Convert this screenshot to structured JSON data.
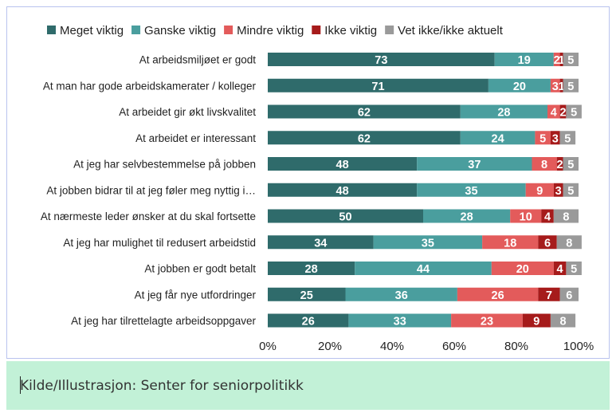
{
  "chart_data": {
    "type": "bar",
    "stacked": true,
    "orientation": "horizontal",
    "categories": [
      "At arbeidsmiljøet er godt",
      "At man har gode arbeidskamerater / kolleger",
      "At arbeidet gir økt livskvalitet",
      "At arbeidet er interessant",
      "At jeg har selvbestemmelse på jobben",
      "At jobben bidrar til at jeg føler meg nyttig i…",
      "At nærmeste leder ønsker at du skal fortsette",
      "At jeg har mulighet til redusert arbeidstid",
      "At jobben er godt betalt",
      "At jeg får nye utfordringer",
      "At jeg har tilrettelagte arbeidsoppgaver"
    ],
    "series": [
      {
        "name": "Meget viktig",
        "color": "#2f6b6b",
        "values": [
          73,
          71,
          62,
          62,
          48,
          48,
          50,
          34,
          28,
          25,
          26
        ]
      },
      {
        "name": "Ganske viktig",
        "color": "#4a9e9e",
        "values": [
          19,
          20,
          28,
          24,
          37,
          35,
          28,
          35,
          44,
          36,
          33
        ]
      },
      {
        "name": "Mindre viktig",
        "color": "#e35b5b",
        "values": [
          2,
          3,
          4,
          5,
          8,
          9,
          10,
          18,
          20,
          26,
          23
        ]
      },
      {
        "name": "Ikke viktig",
        "color": "#a61b1b",
        "values": [
          1,
          1,
          2,
          3,
          2,
          3,
          4,
          6,
          4,
          7,
          9
        ]
      },
      {
        "name": "Vet ikke/ikke aktuelt",
        "color": "#9a9a9a",
        "values": [
          5,
          5,
          5,
          5,
          5,
          5,
          8,
          8,
          5,
          6,
          8
        ]
      }
    ],
    "xlim": [
      0,
      100
    ],
    "xticks": [
      "0%",
      "20%",
      "40%",
      "60%",
      "80%",
      "100%"
    ],
    "legend_position": "top",
    "grid": false
  },
  "caption": "Kilde/Illustrasjon: Senter for seniorpolitikk"
}
